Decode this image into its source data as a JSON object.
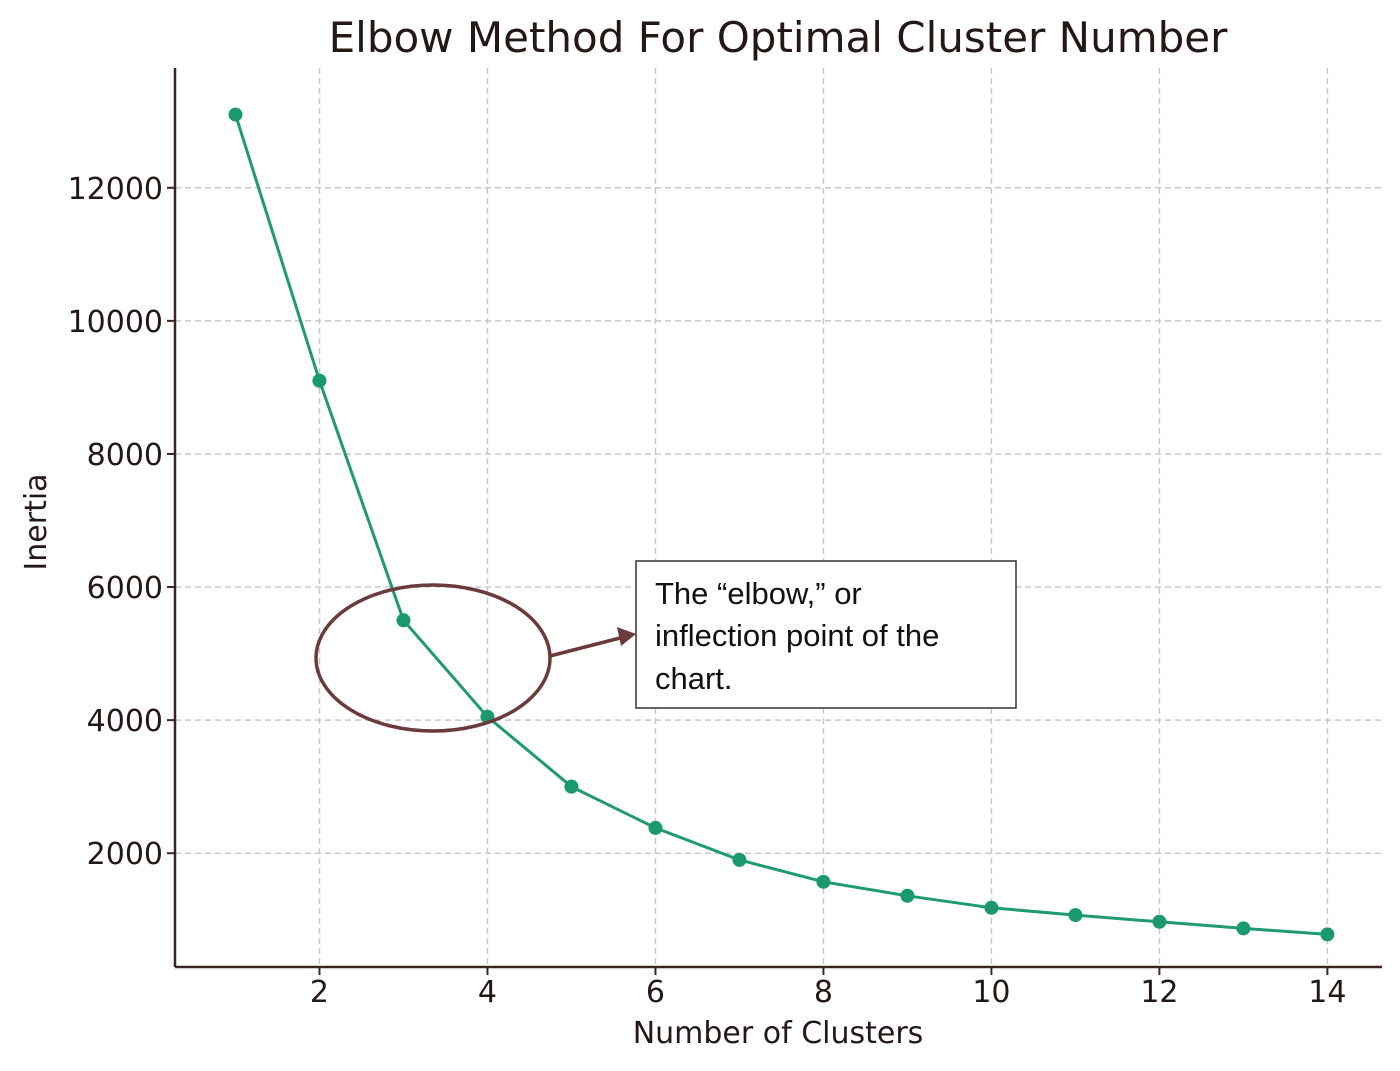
{
  "chart_data": {
    "type": "line",
    "title": "Elbow Method For Optimal Cluster Number",
    "xlabel": "Number of Clusters",
    "ylabel": "Inertia",
    "x": [
      1,
      2,
      3,
      4,
      5,
      6,
      7,
      8,
      9,
      10,
      11,
      12,
      13,
      14
    ],
    "series": [
      {
        "values": [
          13100,
          9100,
          5500,
          4050,
          3000,
          2380,
          1900,
          1570,
          1360,
          1180,
          1070,
          970,
          870,
          780
        ],
        "color": "#1f9a72"
      }
    ],
    "xlim": [
      0.28,
      14.65
    ],
    "ylim": [
      290,
      13800
    ],
    "xticks": [
      2,
      4,
      6,
      8,
      10,
      12,
      14
    ],
    "yticks": [
      2000,
      4000,
      6000,
      8000,
      10000,
      12000
    ],
    "grid": true,
    "annotation": {
      "text_lines": [
        "The “elbow,” or",
        "inflection point of the",
        "chart."
      ],
      "target_x": 3.5,
      "target_y": 4800,
      "ellipse_color": "#6b3a3a"
    }
  }
}
